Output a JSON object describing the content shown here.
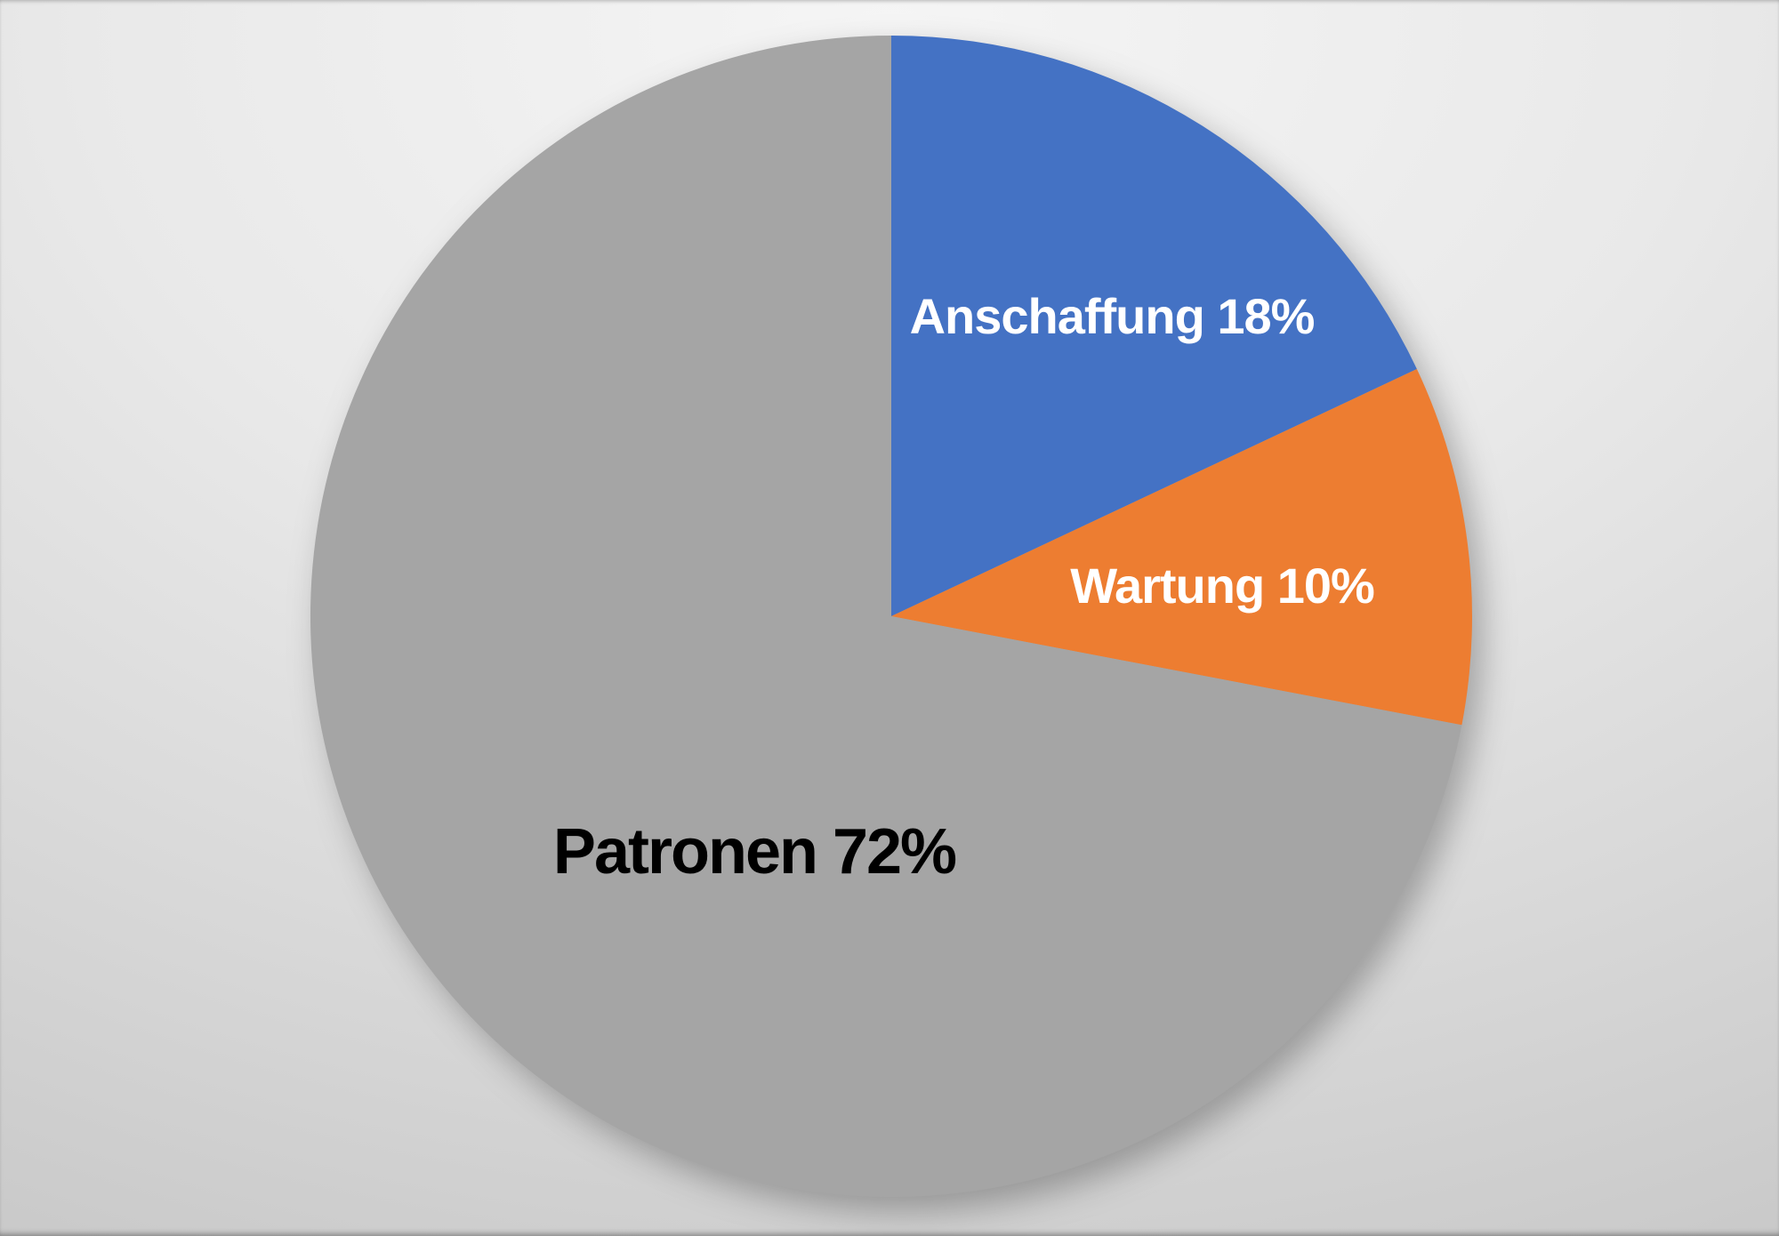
{
  "background": {
    "top_color": "#F5F5F5",
    "bottom_color": "#C5C5C5"
  },
  "chart_data": {
    "type": "pie",
    "title": "",
    "legend": "none",
    "labels_inside": true,
    "start_angle_deg": 0,
    "direction": "clockwise",
    "series": [
      {
        "label": "Anschaffung",
        "value": 18,
        "unit": "%",
        "display": "Anschaffung 18%",
        "color": "#4472C4",
        "text_color": "#FFFFFF"
      },
      {
        "label": "Wartung",
        "value": 10,
        "unit": "%",
        "display": "Wartung 10%",
        "color": "#ED7D31",
        "text_color": "#FFFFFF"
      },
      {
        "label": "Patronen",
        "value": 72,
        "unit": "%",
        "display": "Patronen 72%",
        "color": "#A5A5A5",
        "text_color": "#000000"
      }
    ]
  }
}
